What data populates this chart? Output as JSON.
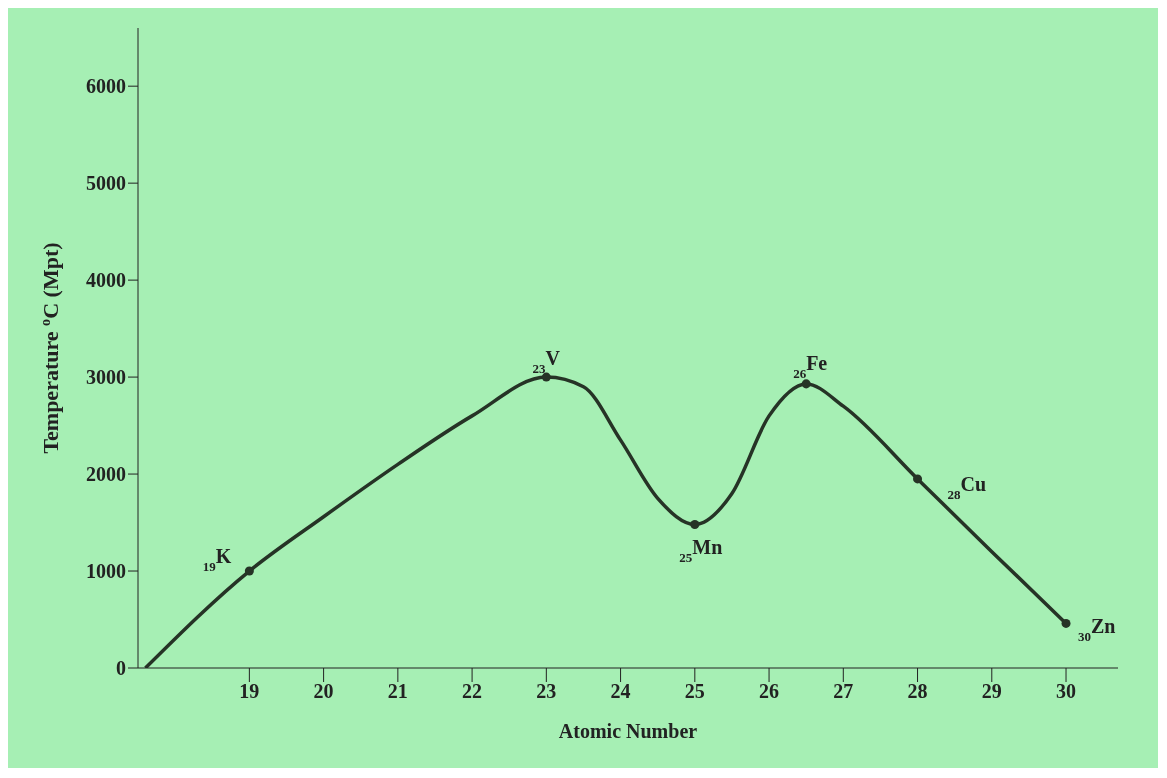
{
  "chart_data": {
    "type": "line",
    "xlabel": "Atomic Number",
    "ylabel": "Temperature $^{o}$C  (Mpt)",
    "xlim": [
      17.5,
      30.7
    ],
    "xticks": [
      19,
      20,
      21,
      22,
      23,
      24,
      25,
      26,
      27,
      28,
      29,
      30
    ],
    "ylim": [
      0,
      6600
    ],
    "yticks": [
      0,
      1000,
      2000,
      3000,
      4000,
      5000,
      6000
    ],
    "grid": false,
    "legend": false,
    "series": [
      {
        "type": "line",
        "color": "#263326",
        "marker": "none",
        "line_style": "solid",
        "x": [
          17.6,
          19,
          20,
          21,
          22,
          23,
          23.5,
          24,
          24.5,
          25,
          25.5,
          26,
          26.5,
          27,
          28,
          29,
          30
        ],
        "values": [
          0,
          1000,
          1560,
          2100,
          2600,
          3000,
          2900,
          2350,
          1750,
          1480,
          1800,
          2600,
          2930,
          2700,
          1950,
          1200,
          460
        ]
      },
      {
        "type": "scatter",
        "color": "#263326",
        "marker": "circle",
        "x": [
          19,
          23,
          25,
          26.5,
          28,
          30
        ],
        "values": [
          1000,
          3000,
          1480,
          2930,
          1950,
          460
        ]
      }
    ],
    "annotations": [
      {
        "text": "$_{19}$K",
        "x": 19,
        "y": 1000
      },
      {
        "text": "$_{23}$V",
        "x": 23,
        "y": 3000
      },
      {
        "text": "$_{25}$Mn",
        "x": 25,
        "y": 1480
      },
      {
        "text": "$_{26}$Fe",
        "x": 26.5,
        "y": 2930
      },
      {
        "text": "$_{28}$Cu",
        "x": 28,
        "y": 1950
      },
      {
        "text": "$_{30}$Zn",
        "x": 30,
        "y": 460
      }
    ]
  }
}
